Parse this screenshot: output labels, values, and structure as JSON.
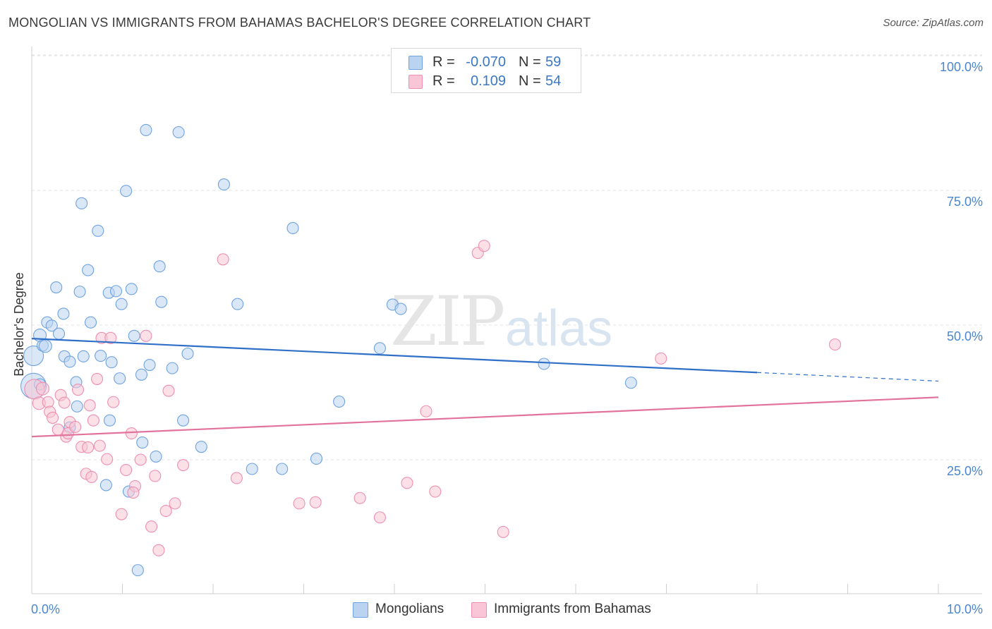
{
  "title": "MONGOLIAN VS IMMIGRANTS FROM BAHAMAS BACHELOR'S DEGREE CORRELATION CHART",
  "source": "Source: ZipAtlas.com",
  "watermark": {
    "zip": "ZIP",
    "atlas": "atlas"
  },
  "legend_top": [
    {
      "r_label": "R =",
      "r_value": "-0.070",
      "n_label": "N =",
      "n_value": "59",
      "color": "#b9d3f1"
    },
    {
      "r_label": "R =",
      "r_value": "0.109",
      "n_label": "N =",
      "n_value": "54",
      "color": "#f8c6d6"
    }
  ],
  "legend_bottom": [
    {
      "label": "Mongolians",
      "color": "#b9d3f1"
    },
    {
      "label": "Immigrants from Bahamas",
      "color": "#f8c6d6"
    }
  ],
  "chart_data": {
    "type": "scatter",
    "title": "MONGOLIAN VS IMMIGRANTS FROM BAHAMAS BACHELOR'S DEGREE CORRELATION CHART",
    "xlabel": "",
    "ylabel": "Bachelor's Degree",
    "xlim": [
      0,
      10
    ],
    "ylim": [
      0,
      100
    ],
    "x_tick_labels": [
      "0.0%",
      "10.0%"
    ],
    "y_tick_labels": [
      "25.0%",
      "50.0%",
      "75.0%",
      "100.0%"
    ],
    "y_ticks": [
      25,
      50,
      75,
      100
    ],
    "grid": true,
    "series": [
      {
        "name": "Mongolians",
        "color": "#6fa3e0",
        "fill": "#b9d3f1",
        "trend": {
          "x0": 0.0,
          "y0": 47.5,
          "x1": 8.0,
          "y1": 41.2,
          "dash_to_x": 10.0,
          "dash_to_y": 39.6
        },
        "points": [
          [
            0.02,
            44.3,
            14
          ],
          [
            0.02,
            38.7,
            18
          ],
          [
            0.09,
            48.1,
            9
          ],
          [
            0.12,
            46.2,
            8
          ],
          [
            0.15,
            46.1,
            9
          ],
          [
            0.17,
            50.5,
            8
          ],
          [
            0.22,
            49.9,
            8
          ],
          [
            0.27,
            57.0,
            8
          ],
          [
            0.3,
            48.4,
            8
          ],
          [
            0.35,
            52.1,
            8
          ],
          [
            0.36,
            44.2,
            8
          ],
          [
            0.42,
            43.2,
            8
          ],
          [
            0.49,
            39.4,
            8
          ],
          [
            0.5,
            34.9,
            8
          ],
          [
            0.53,
            56.2,
            8
          ],
          [
            0.55,
            72.6,
            8
          ],
          [
            0.57,
            44.2,
            8
          ],
          [
            0.62,
            60.2,
            8
          ],
          [
            0.65,
            50.5,
            8
          ],
          [
            0.73,
            67.5,
            8
          ],
          [
            0.76,
            44.3,
            8
          ],
          [
            0.82,
            20.3,
            8
          ],
          [
            0.85,
            56.0,
            8
          ],
          [
            0.86,
            32.3,
            8
          ],
          [
            0.88,
            43.1,
            8
          ],
          [
            0.93,
            56.3,
            8
          ],
          [
            0.97,
            40.1,
            8
          ],
          [
            0.99,
            53.9,
            8
          ],
          [
            1.04,
            74.9,
            8
          ],
          [
            1.07,
            19.1,
            8
          ],
          [
            1.1,
            56.7,
            8
          ],
          [
            1.13,
            48.0,
            8
          ],
          [
            1.17,
            4.5,
            8
          ],
          [
            1.21,
            40.8,
            8
          ],
          [
            1.22,
            28.2,
            8
          ],
          [
            1.26,
            86.2,
            8
          ],
          [
            1.3,
            42.6,
            8
          ],
          [
            1.37,
            25.6,
            8
          ],
          [
            1.41,
            60.9,
            8
          ],
          [
            1.43,
            54.3,
            8
          ],
          [
            1.55,
            42.0,
            8
          ],
          [
            1.62,
            85.8,
            8
          ],
          [
            1.67,
            32.3,
            8
          ],
          [
            1.72,
            44.7,
            8
          ],
          [
            1.87,
            27.4,
            8
          ],
          [
            2.12,
            76.1,
            8
          ],
          [
            2.27,
            53.9,
            8
          ],
          [
            2.43,
            23.3,
            8
          ],
          [
            2.76,
            23.3,
            8
          ],
          [
            2.88,
            68.0,
            8
          ],
          [
            3.14,
            25.2,
            8
          ],
          [
            3.39,
            35.8,
            8
          ],
          [
            3.84,
            45.7,
            8
          ],
          [
            3.98,
            53.8,
            8
          ],
          [
            4.07,
            53.0,
            8
          ],
          [
            5.65,
            42.8,
            8
          ],
          [
            6.61,
            39.3,
            8
          ],
          [
            0.09,
            39.0,
            8
          ],
          [
            0.42,
            31.0,
            8
          ]
        ]
      },
      {
        "name": "Immigrants from Bahamas",
        "color": "#ee8fb0",
        "fill": "#f8c6d6",
        "trend": {
          "x0": 0.0,
          "y0": 29.3,
          "x1": 10.0,
          "y1": 36.6
        },
        "points": [
          [
            0.03,
            38.1,
            14
          ],
          [
            0.08,
            35.5,
            9
          ],
          [
            0.12,
            38.2,
            9
          ],
          [
            0.18,
            35.7,
            8
          ],
          [
            0.2,
            33.9,
            8
          ],
          [
            0.23,
            32.8,
            8
          ],
          [
            0.29,
            30.6,
            8
          ],
          [
            0.32,
            37.0,
            8
          ],
          [
            0.36,
            35.6,
            8
          ],
          [
            0.38,
            29.3,
            8
          ],
          [
            0.4,
            29.9,
            8
          ],
          [
            0.42,
            32.0,
            8
          ],
          [
            0.48,
            31.1,
            8
          ],
          [
            0.51,
            38.0,
            8
          ],
          [
            0.55,
            27.4,
            8
          ],
          [
            0.6,
            22.4,
            8
          ],
          [
            0.62,
            27.3,
            8
          ],
          [
            0.64,
            35.1,
            8
          ],
          [
            0.66,
            21.8,
            8
          ],
          [
            0.68,
            32.3,
            8
          ],
          [
            0.72,
            40.0,
            8
          ],
          [
            0.75,
            27.6,
            8
          ],
          [
            0.77,
            47.6,
            8
          ],
          [
            0.83,
            25.1,
            8
          ],
          [
            0.87,
            47.6,
            8
          ],
          [
            0.9,
            35.7,
            8
          ],
          [
            0.99,
            14.9,
            8
          ],
          [
            1.04,
            23.1,
            8
          ],
          [
            1.1,
            29.9,
            8
          ],
          [
            1.14,
            20.1,
            8
          ],
          [
            1.2,
            25.0,
            8
          ],
          [
            1.26,
            48.0,
            8
          ],
          [
            1.32,
            12.6,
            8
          ],
          [
            1.36,
            22.0,
            8
          ],
          [
            1.4,
            8.2,
            8
          ],
          [
            1.48,
            15.5,
            8
          ],
          [
            1.51,
            37.8,
            8
          ],
          [
            1.58,
            16.9,
            8
          ],
          [
            1.67,
            24.0,
            8
          ],
          [
            2.11,
            62.2,
            8
          ],
          [
            2.26,
            21.6,
            8
          ],
          [
            2.95,
            16.9,
            8
          ],
          [
            3.13,
            17.1,
            8
          ],
          [
            3.62,
            17.9,
            8
          ],
          [
            3.84,
            14.3,
            8
          ],
          [
            4.14,
            20.7,
            8
          ],
          [
            4.35,
            34.0,
            8
          ],
          [
            4.45,
            19.1,
            8
          ],
          [
            4.92,
            63.4,
            8
          ],
          [
            4.99,
            64.7,
            8
          ],
          [
            5.2,
            11.6,
            8
          ],
          [
            6.94,
            43.8,
            8
          ],
          [
            8.86,
            46.4,
            8
          ],
          [
            1.12,
            18.9,
            8
          ]
        ]
      }
    ]
  }
}
